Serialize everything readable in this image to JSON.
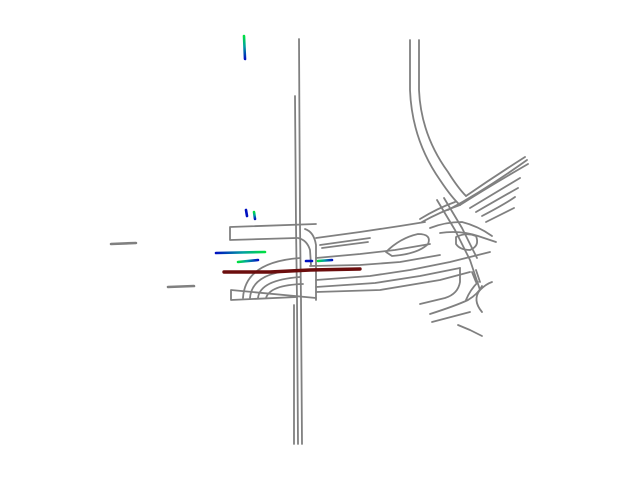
{
  "scene": {
    "type": "map",
    "colors": {
      "background": "#ffffff",
      "lane": "#808080",
      "ego": "#6b0d0d",
      "agent_start": "#00e040",
      "agent_end": "#0010c0"
    },
    "layers": [
      "lane-lines",
      "agent-trajectories",
      "ego-trajectory"
    ],
    "gradient": "start-to-end"
  }
}
